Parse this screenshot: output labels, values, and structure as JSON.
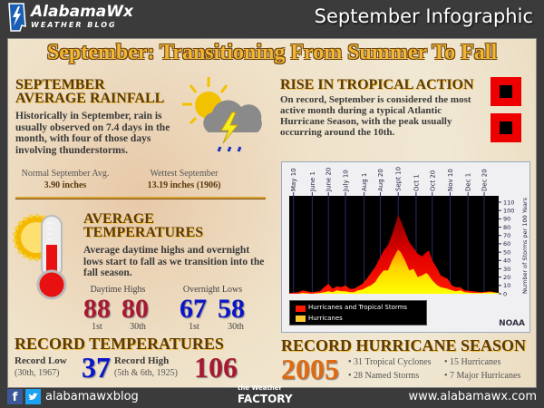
{
  "header": {
    "logo_name": "AlabamaWx",
    "logo_sub": "WEATHER BLOG",
    "title": "September Infographic"
  },
  "main_title": "September: Transitioning From Summer To Fall",
  "rainfall": {
    "heading1": "SEPTEMBER",
    "heading2": "AVERAGE RAINFALL",
    "body": "Historically in September, rain is usually observed on 7.4 days in the month, with four of those days involving thunderstorms.",
    "normal_label": "Normal September Avg.",
    "normal_value": "3.90 inches",
    "wettest_label": "Wettest September",
    "wettest_value": "13.19 inches (1906)"
  },
  "temps": {
    "heading1": "AVERAGE",
    "heading2": "TEMPERATURES",
    "body": "Average daytime highs and overnight lows start to fall as we transition into the fall season.",
    "highs_label": "Daytime Highs",
    "lows_label": "Overnight Lows",
    "high_1st": "88",
    "high_30th": "80",
    "low_1st": "67",
    "low_30th": "58",
    "day1": "1st",
    "day30": "30th"
  },
  "records": {
    "heading": "RECORD TEMPERATURES",
    "low_label": "Record Low",
    "low_date": "(30th, 1967)",
    "low_value": "37",
    "high_label": "Record High",
    "high_date": "(5th & 6th, 1925)",
    "high_value": "106"
  },
  "tropical": {
    "heading": "RISE IN TROPICAL ACTION",
    "body": "On record, September is considered the most active month during a typical Atlantic Hurricane Season, with the peak usually occurring around the 10th."
  },
  "hurricane_season": {
    "heading": "RECORD HURRICANE SEASON",
    "year": "2005",
    "bullets": [
      "• 31 Tropical Cyclones",
      "• 28 Named Storms",
      "• 15 Hurricanes",
      "• 7 Major Hurricanes"
    ]
  },
  "footer": {
    "social": "alabamawxblog",
    "brand_small": "the Weather",
    "brand_big": "FACTORY",
    "url": "www.alabamawx.com"
  },
  "colors": {
    "accent": "#f2b634",
    "high": "#a81830",
    "low": "#0a14c8",
    "record_year": "#e06a10"
  },
  "chart_data": {
    "type": "area",
    "source": "NOAA",
    "ylabel": "Number of Storms per 100 Years",
    "ylim": [
      0,
      110
    ],
    "yticks": [
      0,
      10,
      20,
      30,
      40,
      50,
      60,
      70,
      80,
      90,
      100,
      110
    ],
    "xlim": [
      4,
      250
    ],
    "xticks": [
      {
        "day": 9,
        "label": "May 10"
      },
      {
        "day": 31,
        "label": "June 1"
      },
      {
        "day": 50,
        "label": "June 20"
      },
      {
        "day": 70,
        "label": "July 10"
      },
      {
        "day": 92,
        "label": "Aug 1"
      },
      {
        "day": 111,
        "label": "Aug 20"
      },
      {
        "day": 132,
        "label": "Sept 10"
      },
      {
        "day": 153,
        "label": "Oct 1"
      },
      {
        "day": 172,
        "label": "Oct 20"
      },
      {
        "day": 193,
        "label": "Nov 10"
      },
      {
        "day": 214,
        "label": "Dec 1"
      },
      {
        "day": 233,
        "label": "Dec 20"
      }
    ],
    "legend": [
      "Hurricanes and Tropical Storms",
      "Hurricanes"
    ],
    "x": [
      4,
      15,
      20,
      30,
      40,
      45,
      50,
      55,
      60,
      65,
      70,
      75,
      80,
      85,
      90,
      95,
      100,
      105,
      110,
      115,
      120,
      125,
      130,
      132,
      135,
      140,
      145,
      150,
      155,
      160,
      165,
      168,
      172,
      178,
      182,
      186,
      190,
      195,
      200,
      205,
      210,
      220,
      230,
      240,
      250
    ],
    "series": [
      {
        "name": "Hurricanes and Tropical Storms",
        "values": [
          1,
          2,
          4,
          2,
          3,
          8,
          12,
          6,
          9,
          8,
          10,
          6,
          6,
          9,
          12,
          18,
          25,
          32,
          42,
          52,
          58,
          72,
          88,
          95,
          88,
          75,
          62,
          55,
          48,
          45,
          50,
          52,
          40,
          30,
          22,
          20,
          18,
          10,
          8,
          8,
          4,
          3,
          2,
          3,
          1
        ]
      },
      {
        "name": "Hurricanes",
        "values": [
          0,
          0,
          1,
          0,
          1,
          2,
          3,
          2,
          4,
          3,
          3,
          2,
          2,
          4,
          5,
          8,
          10,
          14,
          22,
          28,
          28,
          40,
          50,
          53,
          50,
          40,
          28,
          30,
          20,
          22,
          25,
          22,
          16,
          10,
          8,
          7,
          6,
          4,
          3,
          4,
          2,
          1,
          1,
          2,
          1
        ]
      }
    ]
  }
}
